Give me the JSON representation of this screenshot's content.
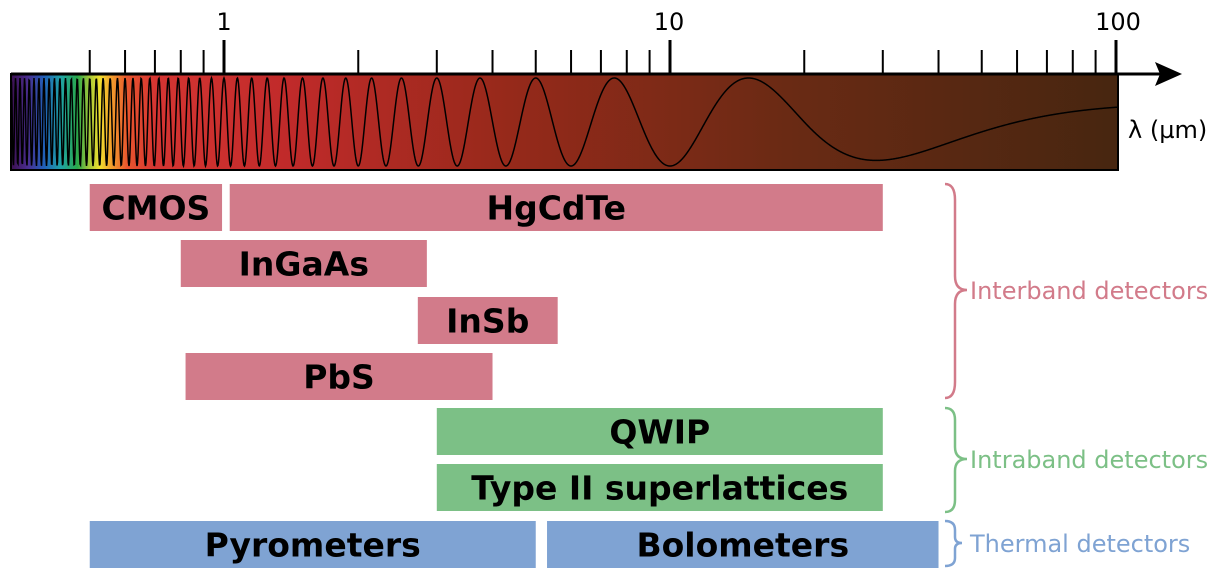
{
  "axis": {
    "label": "λ (µm)",
    "scale": "log",
    "range": [
      0.45,
      100
    ],
    "tick_labels": [
      {
        "value": 1,
        "text": "1"
      },
      {
        "value": 10,
        "text": "10"
      },
      {
        "value": 100,
        "text": "100"
      }
    ]
  },
  "detectors": [
    {
      "label": "CMOS",
      "min": 0.5,
      "max": 0.99,
      "group": "interband",
      "row": 0
    },
    {
      "label": "HgCdTe",
      "min": 1.03,
      "max": 30,
      "group": "interband",
      "row": 0
    },
    {
      "label": "InGaAs",
      "min": 0.8,
      "max": 2.85,
      "group": "interband",
      "row": 1
    },
    {
      "label": "InSb",
      "min": 2.72,
      "max": 5.6,
      "group": "interband",
      "row": 2
    },
    {
      "label": "PbS",
      "min": 0.82,
      "max": 4.0,
      "group": "interband",
      "row": 3
    },
    {
      "label": "QWIP",
      "min": 3.0,
      "max": 30,
      "group": "intraband",
      "row": 4
    },
    {
      "label": "Type II superlattices",
      "min": 3.0,
      "max": 30,
      "group": "intraband",
      "row": 5
    },
    {
      "label": "Pyrometers",
      "min": 0.5,
      "max": 5.0,
      "group": "thermal",
      "row": 6
    },
    {
      "label": "Bolometers",
      "min": 5.3,
      "max": 40,
      "group": "thermal",
      "row": 6
    }
  ],
  "groups": [
    {
      "id": "interband",
      "label": "Interband detectors",
      "color": "#d27b8a",
      "rows": [
        0,
        3
      ]
    },
    {
      "id": "intraband",
      "label": "Intraband detectors",
      "color": "#7cc086",
      "rows": [
        4,
        5
      ]
    },
    {
      "id": "thermal",
      "label": "Thermal detectors",
      "color": "#7fa3d3",
      "rows": [
        6,
        6
      ]
    }
  ],
  "colors": {
    "interband": "#d27b8a",
    "intraband": "#7cc086",
    "thermal": "#7fa3d3",
    "spectrum_dark": "#472610",
    "spectrum_red": "#c8302e"
  }
}
